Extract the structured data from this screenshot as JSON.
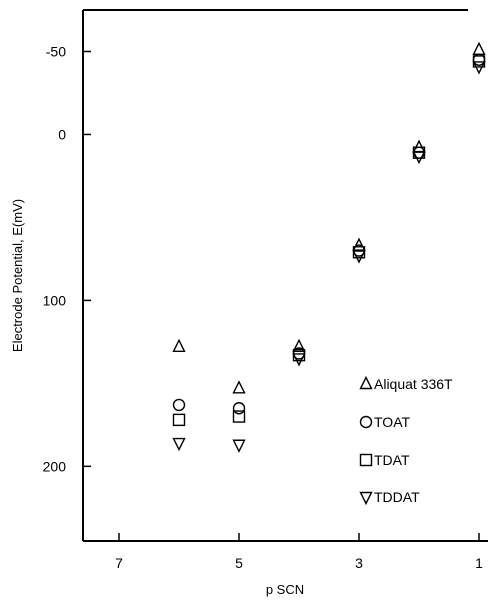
{
  "chart_data": {
    "type": "scatter",
    "xlabel": "p SCN",
    "ylabel": "Electrode Potential, E(mV)",
    "xlim": [
      7.6,
      0.85
    ],
    "ylim": [
      -75,
      245
    ],
    "x_ticks": [
      7,
      5,
      3,
      1
    ],
    "y_ticks": [
      -50,
      0,
      100,
      200
    ],
    "y_axis_inverted": true,
    "x_axis_reversed": true,
    "grid": false,
    "legend_position": "right",
    "series": [
      {
        "name": "Aliquat 336T",
        "marker": "triangle-up",
        "points": [
          [
            6,
            128
          ],
          [
            5,
            153
          ],
          [
            4,
            128
          ],
          [
            3,
            67
          ],
          [
            2,
            8
          ],
          [
            1,
            -51
          ]
        ]
      },
      {
        "name": "TOAT",
        "marker": "circle",
        "points": [
          [
            6,
            163
          ],
          [
            5,
            165
          ],
          [
            4,
            132
          ],
          [
            3,
            70
          ],
          [
            2,
            11
          ],
          [
            1,
            -45
          ]
        ]
      },
      {
        "name": "TDAT",
        "marker": "square",
        "points": [
          [
            6,
            172
          ],
          [
            5,
            170
          ],
          [
            4,
            133
          ],
          [
            3,
            71
          ],
          [
            2,
            11
          ],
          [
            1,
            -44
          ]
        ]
      },
      {
        "name": "TDDAT",
        "marker": "triangle-down",
        "points": [
          [
            6,
            186
          ],
          [
            5,
            187
          ],
          [
            4,
            135
          ],
          [
            3,
            73
          ],
          [
            2,
            13
          ],
          [
            1,
            -41
          ]
        ]
      }
    ]
  }
}
